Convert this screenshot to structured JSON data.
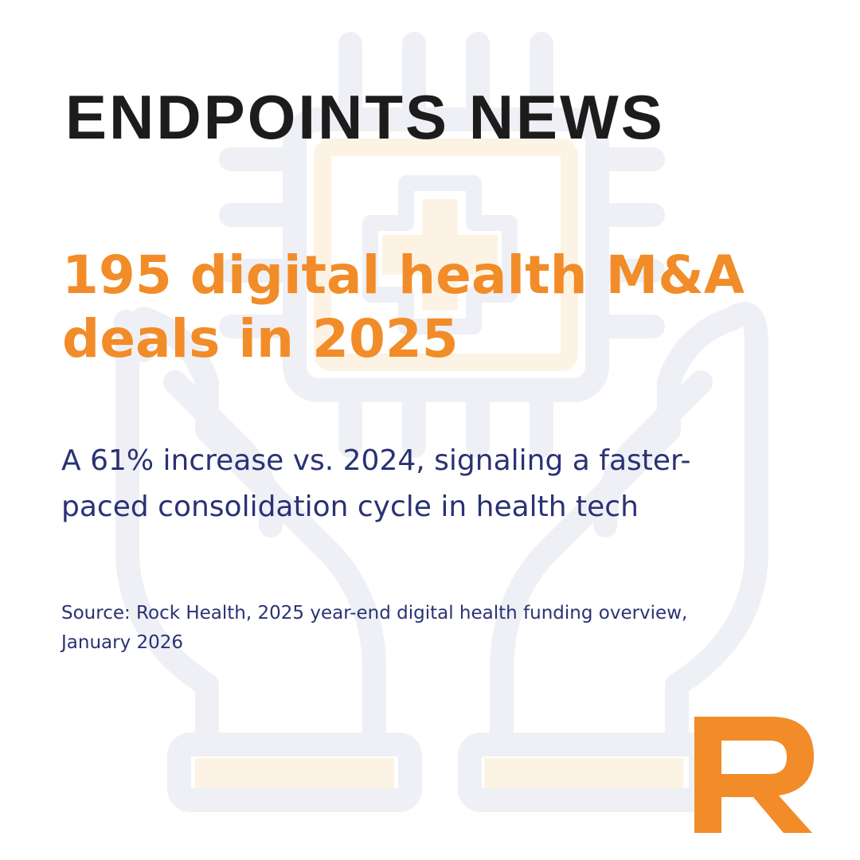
{
  "brand": {
    "name": "ENDPOINTS NEWS"
  },
  "headline": {
    "text": "195 digital health M&A deals in 2025"
  },
  "subhead": {
    "text": "A 61% increase vs. 2024, signaling a faster-paced consolidation cycle in health tech"
  },
  "source": {
    "text": "Source: Rock Health, 2025 year-end digital health funding overview, January 2026"
  },
  "colors": {
    "accent": "#f28c28",
    "navy": "#2a3274",
    "brand_text": "#1c1c1c",
    "watermark": "#eef0f5",
    "watermark_warm": "#fdf3e4"
  },
  "icons": {
    "background": "hands-holding-chip-with-medical-cross-icon",
    "corner_logo": "r-logo-icon"
  }
}
